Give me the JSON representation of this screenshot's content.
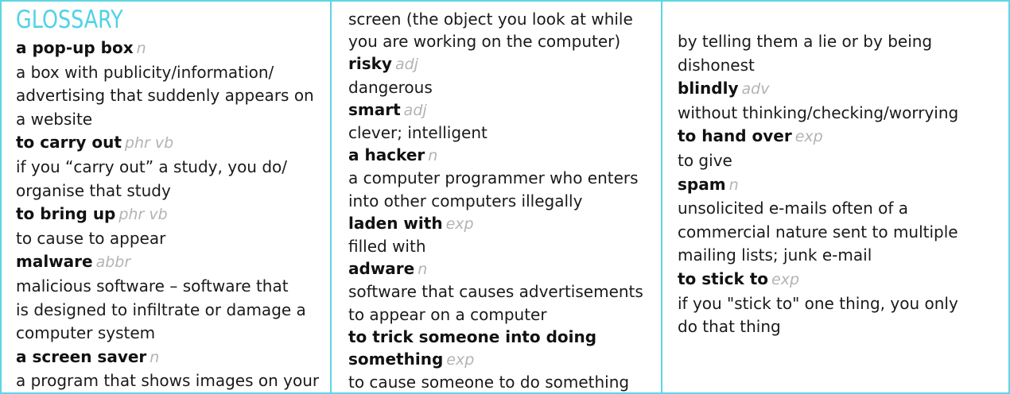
{
  "title": "GLOSSARY",
  "columns": [
    {
      "lines": [
        {
          "type": "term",
          "term": "a pop-up box",
          "pos": "n"
        },
        {
          "type": "def",
          "text": "a box with publicity/information/"
        },
        {
          "type": "def",
          "text": "advertising that suddenly appears on"
        },
        {
          "type": "def",
          "text": "a website"
        },
        {
          "type": "term",
          "term": "to carry out",
          "pos": "phr vb"
        },
        {
          "type": "def",
          "text": "if you “carry out” a study, you do/"
        },
        {
          "type": "def",
          "text": "organise that study"
        },
        {
          "type": "term",
          "term": "to bring up",
          "pos": "phr vb"
        },
        {
          "type": "def",
          "text": "to cause to appear"
        },
        {
          "type": "term",
          "term": "malware",
          "pos": "abbr"
        },
        {
          "type": "def",
          "text": "malicious software – software that"
        },
        {
          "type": "def",
          "text": "is designed to infiltrate or damage a"
        },
        {
          "type": "def",
          "text": "computer system"
        },
        {
          "type": "term",
          "term": "a screen saver",
          "pos": "n"
        },
        {
          "type": "def",
          "text": "a program that shows images on your"
        }
      ]
    },
    {
      "lines": [
        {
          "type": "def",
          "text": "screen (the object you look at while"
        },
        {
          "type": "def",
          "text": "you are working on the computer)"
        },
        {
          "type": "term",
          "term": "risky",
          "pos": "adj"
        },
        {
          "type": "def",
          "text": "dangerous"
        },
        {
          "type": "term",
          "term": "smart",
          "pos": "adj"
        },
        {
          "type": "def",
          "text": "clever; intelligent"
        },
        {
          "type": "term",
          "term": "a hacker",
          "pos": "n"
        },
        {
          "type": "def",
          "text": "a computer programmer who enters"
        },
        {
          "type": "def",
          "text": "into other computers illegally"
        },
        {
          "type": "term",
          "term": "laden with",
          "pos": "exp"
        },
        {
          "type": "def",
          "text": "filled with"
        },
        {
          "type": "term",
          "term": "adware",
          "pos": "n"
        },
        {
          "type": "def",
          "text": "software that causes advertisements"
        },
        {
          "type": "def",
          "text": "to appear on a computer"
        },
        {
          "type": "term",
          "term": "to trick someone into doing",
          "pos": ""
        },
        {
          "type": "term",
          "term": "something",
          "pos": "exp"
        },
        {
          "type": "def",
          "text": "to cause someone to do something"
        }
      ]
    },
    {
      "lines": [
        {
          "type": "def",
          "text": "by telling them a lie or by being"
        },
        {
          "type": "def",
          "text": "dishonest"
        },
        {
          "type": "term",
          "term": "blindly",
          "pos": "adv"
        },
        {
          "type": "def",
          "text": "without thinking/checking/worrying"
        },
        {
          "type": "term",
          "term": "to hand over",
          "pos": "exp"
        },
        {
          "type": "def",
          "text": "to give"
        },
        {
          "type": "term",
          "term": "spam",
          "pos": "n"
        },
        {
          "type": "def",
          "text": "unsolicited e-mails often of a"
        },
        {
          "type": "def",
          "text": "commercial nature sent to multiple"
        },
        {
          "type": "def",
          "text": "mailing lists; junk e-mail"
        },
        {
          "type": "term",
          "term": "to stick to",
          "pos": "exp"
        },
        {
          "type": "def",
          "text": "if you \"stick to\" one thing, you only"
        },
        {
          "type": "def",
          "text": "do that thing"
        }
      ]
    }
  ]
}
